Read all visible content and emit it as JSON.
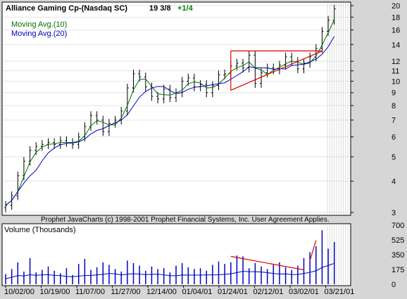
{
  "chart_data": [
    {
      "type": "ohlc",
      "title": "Alliance Gaming Cp-(Nasdaq SC)",
      "last_price": "19 3/8",
      "change": "+1/4",
      "legend": [
        {
          "name": "Moving Avg.(10)",
          "color": "#007000"
        },
        {
          "name": "Moving Avg.(20)",
          "color": "#0000c0"
        }
      ],
      "y_scale": "log",
      "ylim": [
        3,
        20
      ],
      "y_ticks": [
        3,
        4,
        5,
        6,
        7,
        8,
        9,
        10,
        11,
        12,
        14,
        16,
        18,
        20
      ],
      "x_labels": [
        "10/02/00",
        "10/19/00",
        "11/07/00",
        "11/27/00",
        "12/14/00",
        "01/04/01",
        "01/24/01",
        "02/12/01",
        "03/02/01",
        "03/21/01"
      ],
      "price_close_approx": [
        3.2,
        3.5,
        4.2,
        4.8,
        5.3,
        5.5,
        5.6,
        5.7,
        5.6,
        5.8,
        5.7,
        5.6,
        6.0,
        6.6,
        7.3,
        7.0,
        6.3,
        6.8,
        7.0,
        7.6,
        9.4,
        10.7,
        10.4,
        9.5,
        8.7,
        8.5,
        9.3,
        8.6,
        9.0,
        10.0,
        10.3,
        9.5,
        9.7,
        9.0,
        9.6,
        10.6,
        10.7,
        11.5,
        11.8,
        11.3,
        12.7,
        9.8,
        10.8,
        11.3,
        11.1,
        11.6,
        12.5,
        12.0,
        11.2,
        11.8,
        12.5,
        13.5,
        15.8,
        17.5,
        19.4
      ],
      "annotations": [
        "triangle pattern Feb–Mar 2001",
        "breakout Mar 2001"
      ]
    },
    {
      "type": "bar",
      "title": "Volume (Thousands)",
      "ylim": [
        0,
        700
      ],
      "y_ticks": [
        0,
        175,
        350,
        525,
        700
      ],
      "volume_approx": [
        120,
        180,
        260,
        150,
        310,
        140,
        170,
        210,
        160,
        130,
        190,
        110,
        240,
        300,
        170,
        200,
        260,
        230,
        180,
        150,
        280,
        250,
        220,
        160,
        210,
        180,
        190,
        140,
        220,
        250,
        200,
        180,
        190,
        160,
        230,
        270,
        240,
        260,
        340,
        330,
        190,
        250,
        210,
        180,
        230,
        260,
        200,
        170,
        220,
        310,
        380,
        450,
        640,
        420,
        500
      ],
      "moving_avg_color": "#0000c0"
    }
  ],
  "footer": {
    "copyright": "Prophet JavaCharts (c) 1998-2001 Prophet Financial Systems, Inc.  User Agreement Applies."
  }
}
